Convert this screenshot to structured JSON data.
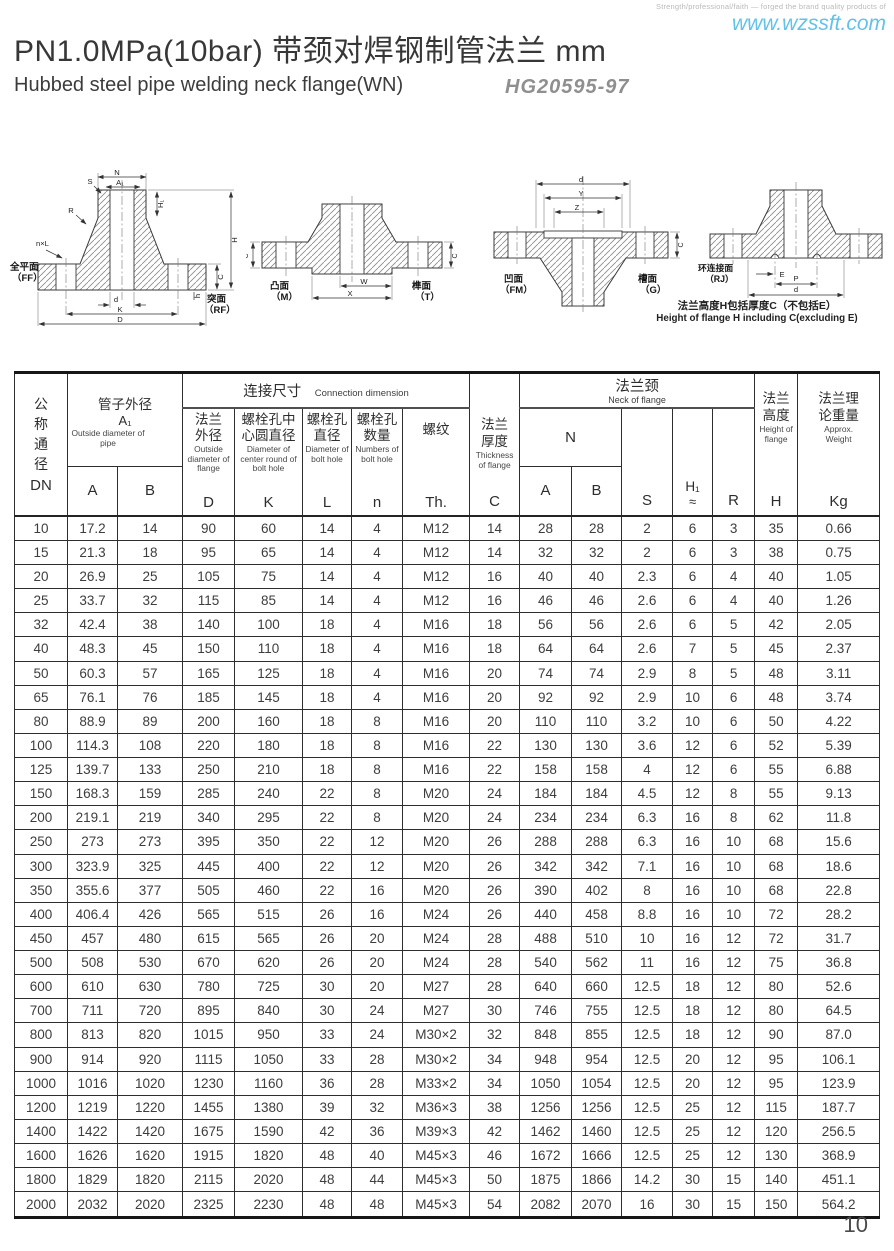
{
  "page": {
    "tagline": "Strength/professional/faith — forged the brand quality products of",
    "website": "www.wzssft.com",
    "page_number": "10"
  },
  "header": {
    "title": "PN1.0MPa(10bar) 带颈对焊钢制管法兰  mm",
    "subtitle": "Hubbed steel pipe welding neck flange(WN)",
    "standard": "HG20595-97"
  },
  "drawings": {
    "d1": {
      "dim_n": "N",
      "dim_a1": "A₁",
      "dim_s": "S",
      "dim_r": "R",
      "dim_nl": "n×L",
      "dim_h1": "H₁",
      "dim_h": "H",
      "dim_c": "C",
      "dim_small_h": "h",
      "dim_d": "d",
      "dim_k": "K",
      "dim_big_d": "D",
      "face_left": "全平面",
      "face_left_code": "（FF）",
      "face_right": "突面",
      "face_right_code": "（RF）"
    },
    "d2": {
      "dim_w": "W",
      "dim_x": "X",
      "dim_c": "C",
      "face_left": "凸面",
      "face_left_code": "（M）",
      "face_right": "榫面",
      "face_right_code": "（T）"
    },
    "d3": {
      "dim_d": "d",
      "dim_y": "Y",
      "dim_z": "Z",
      "dim_c": "C",
      "face_left": "凹面",
      "face_left_code": "（FM）",
      "face_right": "槽面",
      "face_right_code": "（G）"
    },
    "d4": {
      "dim_e": "E",
      "dim_p": "P",
      "dim_d": "d",
      "face": "环连接面",
      "face_code": "（RJ）",
      "caption_cn": "法兰高度H包括厚度C（不包括E）",
      "caption_en": "Height of flange H including C(excluding E)"
    }
  },
  "table": {
    "header": {
      "dn_cn": "公称通径",
      "dn_code": "DN",
      "pipe_cn": "管子外径",
      "pipe_sub": "A₁",
      "pipe_en": "Outside diameter of pipe",
      "pipe_a": "A",
      "pipe_b": "B",
      "conn_cn": "连接尺寸",
      "conn_en": "Connection dimension",
      "flange_od_cn": "法兰外径",
      "flange_od_en": "Outside diameter of flange",
      "flange_od_code": "D",
      "bolt_circle_cn": "螺栓孔中心圆直径",
      "bolt_circle_en": "Diameter of center round of bolt hole",
      "bolt_circle_code": "K",
      "bolt_dia_cn": "螺栓孔直径",
      "bolt_dia_en": "Diameter of bolt hole",
      "bolt_dia_code": "L",
      "bolt_num_cn": "螺栓孔数量",
      "bolt_num_en": "Numbers of bolt hole",
      "bolt_num_code": "n",
      "thread_cn": "螺纹",
      "thread_code": "Th.",
      "thickness_cn": "法兰厚度",
      "thickness_en": "Thickness of flange",
      "thickness_code": "C",
      "neck_cn": "法兰颈",
      "neck_en": "Neck of flange",
      "neck_n": "N",
      "neck_a": "A",
      "neck_b": "B",
      "neck_s": "S",
      "neck_h1": "H₁",
      "neck_h1_approx": "≈",
      "neck_r": "R",
      "height_cn": "法兰高度",
      "height_en": "Height of flange",
      "height_code": "H",
      "weight_cn": "法兰理论重量",
      "weight_en": "Approx. Weight",
      "weight_code": "Kg"
    },
    "rows": [
      [
        "10",
        "17.2",
        "14",
        "90",
        "60",
        "14",
        "4",
        "M12",
        "14",
        "28",
        "28",
        "2",
        "6",
        "3",
        "35",
        "0.66"
      ],
      [
        "15",
        "21.3",
        "18",
        "95",
        "65",
        "14",
        "4",
        "M12",
        "14",
        "32",
        "32",
        "2",
        "6",
        "3",
        "38",
        "0.75"
      ],
      [
        "20",
        "26.9",
        "25",
        "105",
        "75",
        "14",
        "4",
        "M12",
        "16",
        "40",
        "40",
        "2.3",
        "6",
        "4",
        "40",
        "1.05"
      ],
      [
        "25",
        "33.7",
        "32",
        "115",
        "85",
        "14",
        "4",
        "M12",
        "16",
        "46",
        "46",
        "2.6",
        "6",
        "4",
        "40",
        "1.26"
      ],
      [
        "32",
        "42.4",
        "38",
        "140",
        "100",
        "18",
        "4",
        "M16",
        "18",
        "56",
        "56",
        "2.6",
        "6",
        "5",
        "42",
        "2.05"
      ],
      [
        "40",
        "48.3",
        "45",
        "150",
        "110",
        "18",
        "4",
        "M16",
        "18",
        "64",
        "64",
        "2.6",
        "7",
        "5",
        "45",
        "2.37"
      ],
      [
        "50",
        "60.3",
        "57",
        "165",
        "125",
        "18",
        "4",
        "M16",
        "20",
        "74",
        "74",
        "2.9",
        "8",
        "5",
        "48",
        "3.11"
      ],
      [
        "65",
        "76.1",
        "76",
        "185",
        "145",
        "18",
        "4",
        "M16",
        "20",
        "92",
        "92",
        "2.9",
        "10",
        "6",
        "48",
        "3.74"
      ],
      [
        "80",
        "88.9",
        "89",
        "200",
        "160",
        "18",
        "8",
        "M16",
        "20",
        "110",
        "110",
        "3.2",
        "10",
        "6",
        "50",
        "4.22"
      ],
      [
        "100",
        "114.3",
        "108",
        "220",
        "180",
        "18",
        "8",
        "M16",
        "22",
        "130",
        "130",
        "3.6",
        "12",
        "6",
        "52",
        "5.39"
      ],
      [
        "125",
        "139.7",
        "133",
        "250",
        "210",
        "18",
        "8",
        "M16",
        "22",
        "158",
        "158",
        "4",
        "12",
        "6",
        "55",
        "6.88"
      ],
      [
        "150",
        "168.3",
        "159",
        "285",
        "240",
        "22",
        "8",
        "M20",
        "24",
        "184",
        "184",
        "4.5",
        "12",
        "8",
        "55",
        "9.13"
      ],
      [
        "200",
        "219.1",
        "219",
        "340",
        "295",
        "22",
        "8",
        "M20",
        "24",
        "234",
        "234",
        "6.3",
        "16",
        "8",
        "62",
        "11.8"
      ],
      [
        "250",
        "273",
        "273",
        "395",
        "350",
        "22",
        "12",
        "M20",
        "26",
        "288",
        "288",
        "6.3",
        "16",
        "10",
        "68",
        "15.6"
      ],
      [
        "300",
        "323.9",
        "325",
        "445",
        "400",
        "22",
        "12",
        "M20",
        "26",
        "342",
        "342",
        "7.1",
        "16",
        "10",
        "68",
        "18.6"
      ],
      [
        "350",
        "355.6",
        "377",
        "505",
        "460",
        "22",
        "16",
        "M20",
        "26",
        "390",
        "402",
        "8",
        "16",
        "10",
        "68",
        "22.8"
      ],
      [
        "400",
        "406.4",
        "426",
        "565",
        "515",
        "26",
        "16",
        "M24",
        "26",
        "440",
        "458",
        "8.8",
        "16",
        "10",
        "72",
        "28.2"
      ],
      [
        "450",
        "457",
        "480",
        "615",
        "565",
        "26",
        "20",
        "M24",
        "28",
        "488",
        "510",
        "10",
        "16",
        "12",
        "72",
        "31.7"
      ],
      [
        "500",
        "508",
        "530",
        "670",
        "620",
        "26",
        "20",
        "M24",
        "28",
        "540",
        "562",
        "11",
        "16",
        "12",
        "75",
        "36.8"
      ],
      [
        "600",
        "610",
        "630",
        "780",
        "725",
        "30",
        "20",
        "M27",
        "28",
        "640",
        "660",
        "12.5",
        "18",
        "12",
        "80",
        "52.6"
      ],
      [
        "700",
        "711",
        "720",
        "895",
        "840",
        "30",
        "24",
        "M27",
        "30",
        "746",
        "755",
        "12.5",
        "18",
        "12",
        "80",
        "64.5"
      ],
      [
        "800",
        "813",
        "820",
        "1015",
        "950",
        "33",
        "24",
        "M30×2",
        "32",
        "848",
        "855",
        "12.5",
        "18",
        "12",
        "90",
        "87.0"
      ],
      [
        "900",
        "914",
        "920",
        "1115",
        "1050",
        "33",
        "28",
        "M30×2",
        "34",
        "948",
        "954",
        "12.5",
        "20",
        "12",
        "95",
        "106.1"
      ],
      [
        "1000",
        "1016",
        "1020",
        "1230",
        "1160",
        "36",
        "28",
        "M33×2",
        "34",
        "1050",
        "1054",
        "12.5",
        "20",
        "12",
        "95",
        "123.9"
      ],
      [
        "1200",
        "1219",
        "1220",
        "1455",
        "1380",
        "39",
        "32",
        "M36×3",
        "38",
        "1256",
        "1256",
        "12.5",
        "25",
        "12",
        "115",
        "187.7"
      ],
      [
        "1400",
        "1422",
        "1420",
        "1675",
        "1590",
        "42",
        "36",
        "M39×3",
        "42",
        "1462",
        "1460",
        "12.5",
        "25",
        "12",
        "120",
        "256.5"
      ],
      [
        "1600",
        "1626",
        "1620",
        "1915",
        "1820",
        "48",
        "40",
        "M45×3",
        "46",
        "1672",
        "1666",
        "12.5",
        "25",
        "12",
        "130",
        "368.9"
      ],
      [
        "1800",
        "1829",
        "1820",
        "2115",
        "2020",
        "48",
        "44",
        "M45×3",
        "50",
        "1875",
        "1866",
        "14.2",
        "30",
        "15",
        "140",
        "451.1"
      ],
      [
        "2000",
        "2032",
        "2020",
        "2325",
        "2230",
        "48",
        "48",
        "M45×3",
        "54",
        "2082",
        "2070",
        "16",
        "30",
        "15",
        "150",
        "564.2"
      ]
    ]
  }
}
